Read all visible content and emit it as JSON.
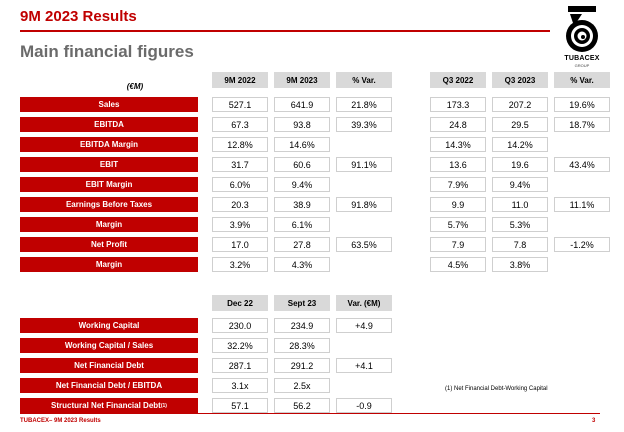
{
  "header": {
    "title": "9M 2023 Results",
    "subtitle": "Main financial figures",
    "logo_text": "TUBACEX",
    "logo_subtext": "GROUP"
  },
  "table1": {
    "unit": "(€M)",
    "columns": [
      "9M 2022",
      "9M 2023",
      "% Var.",
      "Q3 2022",
      "Q3 2023",
      "% Var."
    ],
    "rows": [
      {
        "label": "Sales",
        "values": [
          "527.1",
          "641.9",
          "21.8%",
          "173.3",
          "207.2",
          "19.6%"
        ]
      },
      {
        "label": "EBITDA",
        "values": [
          "67.3",
          "93.8",
          "39.3%",
          "24.8",
          "29.5",
          "18.7%"
        ]
      },
      {
        "label": "EBITDA Margin",
        "values": [
          "12.8%",
          "14.6%",
          "",
          "14.3%",
          "14.2%",
          ""
        ]
      },
      {
        "label": "EBIT",
        "values": [
          "31.7",
          "60.6",
          "91.1%",
          "13.6",
          "19.6",
          "43.4%"
        ]
      },
      {
        "label": "EBIT Margin",
        "values": [
          "6.0%",
          "9.4%",
          "",
          "7.9%",
          "9.4%",
          ""
        ]
      },
      {
        "label": "Earnings Before Taxes",
        "values": [
          "20.3",
          "38.9",
          "91.8%",
          "9.9",
          "11.0",
          "11.1%"
        ]
      },
      {
        "label": "Margin",
        "values": [
          "3.9%",
          "6.1%",
          "",
          "5.7%",
          "5.3%",
          ""
        ]
      },
      {
        "label": "Net Profit",
        "values": [
          "17.0",
          "27.8",
          "63.5%",
          "7.9",
          "7.8",
          "-1.2%"
        ]
      },
      {
        "label": "Margin",
        "values": [
          "3.2%",
          "4.3%",
          "",
          "4.5%",
          "3.8%",
          ""
        ]
      }
    ]
  },
  "table2": {
    "columns": [
      "Dec 22",
      "Sept 23",
      "Var. (€M)"
    ],
    "rows": [
      {
        "label": "Working Capital",
        "values": [
          "230.0",
          "234.9",
          "+4.9"
        ]
      },
      {
        "label": "Working Capital / Sales",
        "values": [
          "32.2%",
          "28.3%",
          ""
        ]
      },
      {
        "label": "Net Financial Debt",
        "values": [
          "287.1",
          "291.2",
          "+4.1"
        ]
      },
      {
        "label": "Net Financial Debt / EBITDA",
        "values": [
          "3.1x",
          "2.5x",
          ""
        ]
      },
      {
        "label": "Structural Net Financial Debt",
        "sup": "(1)",
        "values": [
          "57.1",
          "56.2",
          "-0.9"
        ]
      }
    ]
  },
  "note": "(1) Net Financial Debt-Working Capital",
  "footer": {
    "text": "TUBACEX– 9M 2023 Results",
    "page": "3"
  }
}
